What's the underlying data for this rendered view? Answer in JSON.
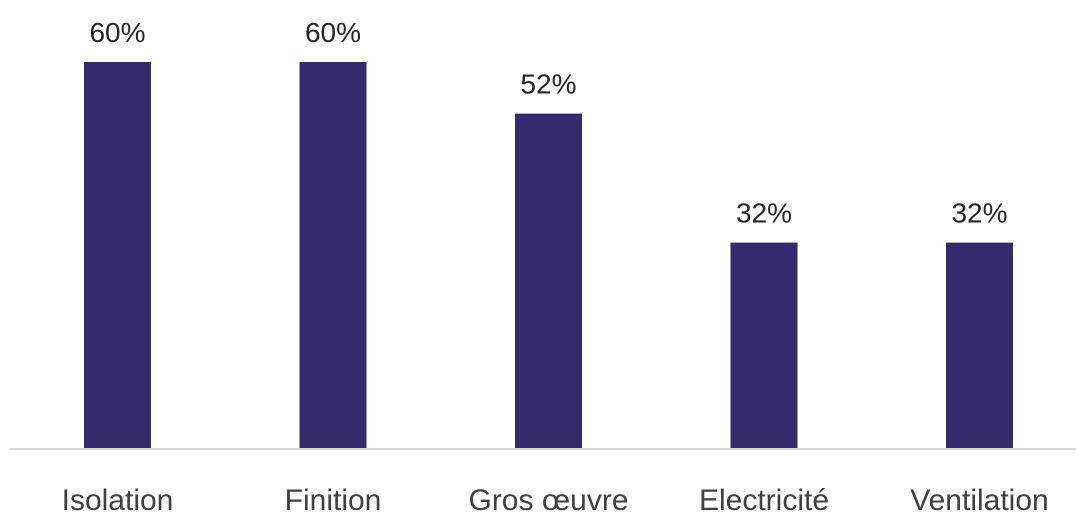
{
  "chart_data": {
    "type": "bar",
    "title": "",
    "xlabel": "",
    "ylabel": "",
    "categories": [
      "Isolation",
      "Finition",
      "Gros œuvre",
      "Electricité",
      "Ventilation"
    ],
    "values": [
      60,
      60,
      52,
      32,
      32
    ],
    "data_labels": [
      "60%",
      "60%",
      "52%",
      "32%",
      "32%"
    ],
    "unit": "%",
    "ylim": [
      0,
      60
    ],
    "grid": false,
    "legend": "none",
    "bar_color": "#352a6b",
    "axis_color": "#d9d9d9"
  }
}
